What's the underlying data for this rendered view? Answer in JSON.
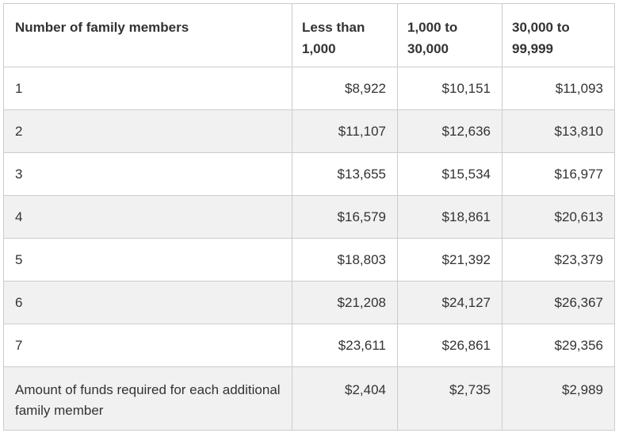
{
  "table": {
    "headers": [
      "Number of family members",
      "Less than 1,000",
      "1,000 to 30,000",
      "30,000 to 99,999"
    ],
    "rows": [
      [
        "1",
        "$8,922",
        "$10,151",
        "$11,093"
      ],
      [
        "2",
        "$11,107",
        "$12,636",
        "$13,810"
      ],
      [
        "3",
        "$13,655",
        "$15,534",
        "$16,977"
      ],
      [
        "4",
        "$16,579",
        "$18,861",
        "$20,613"
      ],
      [
        "5",
        "$18,803",
        "$21,392",
        "$23,379"
      ],
      [
        "6",
        "$21,208",
        "$24,127",
        "$26,367"
      ],
      [
        "7",
        "$23,611",
        "$26,861",
        "$29,356"
      ],
      [
        "Amount of funds required for each additional family member",
        "$2,404",
        "$2,735",
        "$2,989"
      ]
    ]
  },
  "colors": {
    "border": "#cccccc",
    "alt_row": "#f1f1f1",
    "text": "#333333"
  }
}
